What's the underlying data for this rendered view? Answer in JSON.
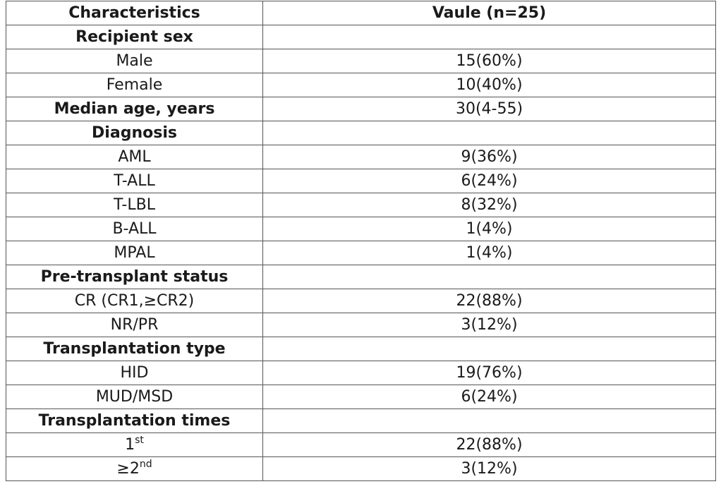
{
  "header": {
    "left": "Characteristics",
    "right": "Vaule (n=25)"
  },
  "groups": [
    {
      "title": "Recipient sex",
      "items": [
        {
          "label": "Male",
          "value": "15(60%)"
        },
        {
          "label": "Female",
          "value": "10(40%)"
        }
      ]
    },
    {
      "title": "Median age, years",
      "value": "30(4-55)",
      "items": []
    },
    {
      "title": "Diagnosis",
      "items": [
        {
          "label": "AML",
          "value": "9(36%)"
        },
        {
          "label": "T-ALL",
          "value": "6(24%)"
        },
        {
          "label": "T-LBL",
          "value": "8(32%)"
        },
        {
          "label": "B-ALL",
          "value": "1(4%)"
        },
        {
          "label": "MPAL",
          "value": "1(4%)"
        }
      ]
    },
    {
      "title": "Pre-transplant status",
      "items": [
        {
          "label": "CR (CR1,≥CR2)",
          "value": "22(88%)"
        },
        {
          "label": "NR/PR",
          "value": "3(12%)"
        }
      ]
    },
    {
      "title": "Transplantation type",
      "items": [
        {
          "label": "HID",
          "value": "19(76%)"
        },
        {
          "label": "MUD/MSD",
          "value": "6(24%)"
        }
      ]
    },
    {
      "title": "Transplantation times",
      "items": [
        {
          "label": "1",
          "sup": "st",
          "value": "22(88%)"
        },
        {
          "label": "≥2",
          "sup": "nd",
          "value": "3(12%)"
        }
      ]
    }
  ]
}
